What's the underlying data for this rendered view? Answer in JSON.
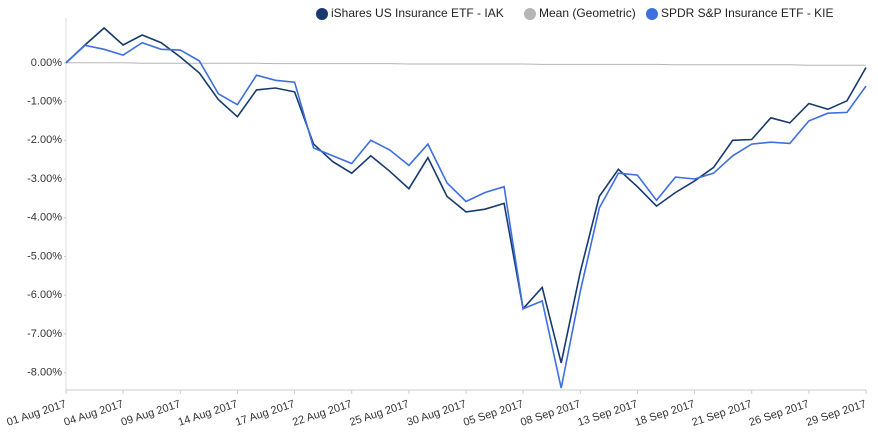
{
  "chart_data": {
    "type": "line",
    "categories": [
      "01 Aug 2017",
      null,
      null,
      "04 Aug 2017",
      null,
      null,
      "09 Aug 2017",
      null,
      null,
      "14 Aug 2017",
      null,
      null,
      "17 Aug 2017",
      null,
      null,
      "22 Aug 2017",
      null,
      null,
      "25 Aug 2017",
      null,
      null,
      "30 Aug 2017",
      null,
      null,
      "05 Sep 2017",
      null,
      null,
      "08 Sep 2017",
      null,
      null,
      "13 Sep 2017",
      null,
      null,
      "18 Sep 2017",
      null,
      null,
      "21 Sep 2017",
      null,
      null,
      "26 Sep 2017",
      null,
      null,
      "29 Sep 2017"
    ],
    "series": [
      {
        "name": "iShares US Insurance ETF - IAK",
        "color": "#173a6e",
        "values": [
          0,
          0.46,
          0.9,
          0.46,
          0.72,
          0.52,
          0.15,
          -0.26,
          -0.95,
          -1.39,
          -0.7,
          -0.65,
          -0.75,
          -2.1,
          -2.55,
          -2.85,
          -2.4,
          -2.8,
          -3.25,
          -2.45,
          -3.45,
          -3.85,
          -3.78,
          -3.63,
          -6.35,
          -5.8,
          -7.75,
          -5.4,
          -3.45,
          -2.75,
          -3.2,
          -3.7,
          -3.35,
          -3.05,
          -2.7,
          -2.0,
          -1.98,
          -1.42,
          -1.55,
          -1.05,
          -1.2,
          -0.98,
          -0.12
        ]
      },
      {
        "name": "Mean (Geometric)",
        "color": "#b5b5b5",
        "values": [
          0,
          0,
          0,
          0,
          -0.01,
          -0.01,
          -0.01,
          -0.01,
          -0.01,
          -0.01,
          -0.01,
          -0.02,
          -0.02,
          -0.02,
          -0.02,
          -0.02,
          -0.02,
          -0.02,
          -0.03,
          -0.03,
          -0.03,
          -0.03,
          -0.03,
          -0.03,
          -0.03,
          -0.04,
          -0.04,
          -0.04,
          -0.04,
          -0.04,
          -0.04,
          -0.04,
          -0.05,
          -0.05,
          -0.05,
          -0.05,
          -0.05,
          -0.05,
          -0.05,
          -0.06,
          -0.06,
          -0.06,
          -0.06
        ]
      },
      {
        "name": "SPDR S&P Insurance ETF - KIE",
        "color": "#3d6fe0",
        "values": [
          0,
          0.45,
          0.35,
          0.2,
          0.52,
          0.35,
          0.33,
          0.05,
          -0.8,
          -1.08,
          -0.32,
          -0.45,
          -0.5,
          -2.2,
          -2.4,
          -2.6,
          -2.0,
          -2.25,
          -2.65,
          -2.1,
          -3.1,
          -3.58,
          -3.35,
          -3.2,
          -6.35,
          -6.15,
          -8.4,
          -5.9,
          -3.75,
          -2.85,
          -2.9,
          -3.55,
          -2.95,
          -3.0,
          -2.85,
          -2.4,
          -2.1,
          -2.05,
          -2.08,
          -1.5,
          -1.3,
          -1.28,
          -0.6
        ]
      }
    ],
    "ylim": [
      -8.45,
      0.9
    ],
    "yticks": [
      {
        "value": 0,
        "label": "0.00%"
      },
      {
        "value": -1,
        "label": "-1.00%"
      },
      {
        "value": -2,
        "label": "-2.00%"
      },
      {
        "value": -3,
        "label": "-3.00%"
      },
      {
        "value": -4,
        "label": "-4.00%"
      },
      {
        "value": -5,
        "label": "-5.00%"
      },
      {
        "value": -6,
        "label": "-6.00%"
      },
      {
        "value": -7,
        "label": "-7.00%"
      },
      {
        "value": -8,
        "label": "-8.00%"
      }
    ],
    "grid": false,
    "legend": "top"
  }
}
